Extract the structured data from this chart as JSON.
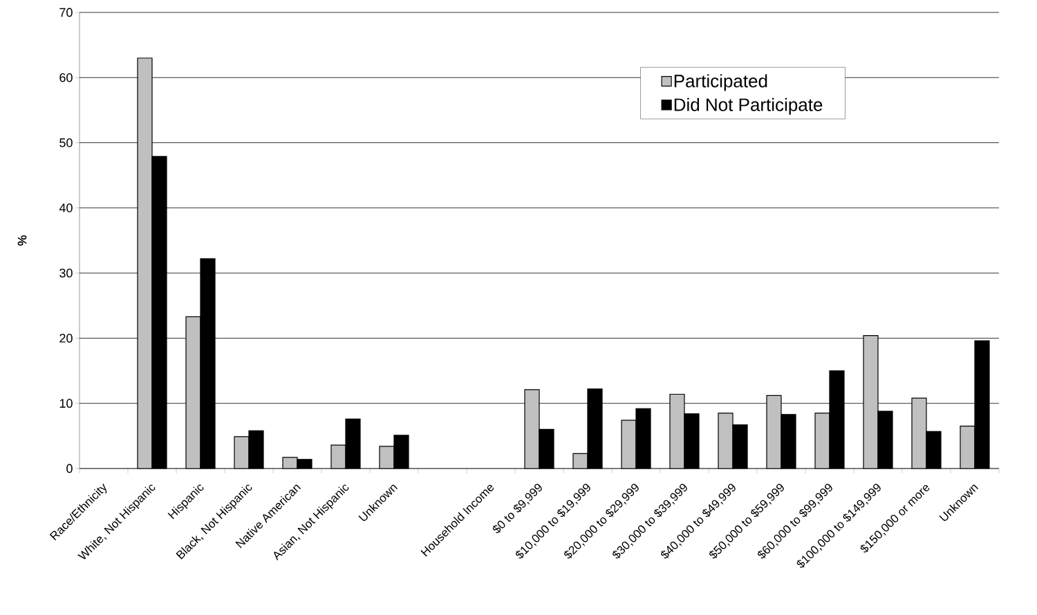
{
  "chart_data": {
    "type": "bar",
    "ylabel": "%",
    "categories": [
      "Race/Ethnicity",
      "White, Not Hispanic",
      "Hispanic",
      "Black, Not Hispanic",
      "Native American",
      "Asian, Not Hispanic",
      "Unknown",
      null,
      "Household Income",
      "$0 to $9,999",
      "$10,000 to $19,999",
      "$20,000 to $29,999",
      "$30,000 to $39,999",
      "$40,000 to $49,999",
      "$50,000 to $59,999",
      "$60,000 to $99,999",
      "$100,000 to $149,999",
      "$150,000 or more",
      "Unknown"
    ],
    "series": [
      {
        "name": "Participated",
        "color": "#c0c0c0",
        "values": [
          null,
          63.0,
          23.3,
          4.9,
          1.7,
          3.6,
          3.4,
          null,
          null,
          12.1,
          2.3,
          7.4,
          11.4,
          8.5,
          11.2,
          8.5,
          20.4,
          10.8,
          6.5
        ]
      },
      {
        "name": "Did Not Participate",
        "color": "#000000",
        "values": [
          null,
          47.9,
          32.2,
          5.8,
          1.4,
          7.6,
          5.1,
          null,
          null,
          6.0,
          12.2,
          9.2,
          8.4,
          6.7,
          8.3,
          15.0,
          8.8,
          5.7,
          19.6
        ]
      }
    ],
    "ylim": [
      0,
      70
    ],
    "yticks": [
      0,
      10,
      20,
      30,
      40,
      50,
      60,
      70
    ],
    "grid": "y",
    "legend": "top right"
  }
}
